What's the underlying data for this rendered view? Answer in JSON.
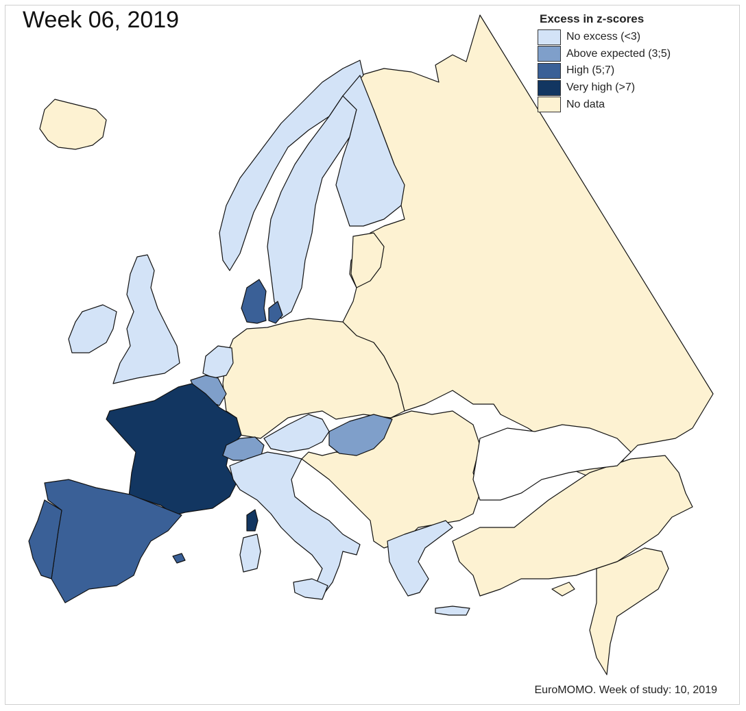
{
  "title": "Week 06, 2019",
  "footer": "EuroMOMO. Week of study: 10, 2019",
  "legend": {
    "title": "Excess in z-scores",
    "items": [
      {
        "label": "No excess (<3)",
        "color": "#d3e3f7"
      },
      {
        "label": "Above expected (3;5)",
        "color": "#7f9fca"
      },
      {
        "label": "High (5;7)",
        "color": "#3a6097"
      },
      {
        "label": "Very high (>7)",
        "color": "#123661"
      },
      {
        "label": "No data",
        "color": "#fdf2d2"
      }
    ]
  },
  "categories": {
    "no_excess": "No excess (<3)",
    "above_expected": "Above expected (3;5)",
    "high": "High (5;7)",
    "very_high": "Very high (>7)",
    "no_data": "No data"
  }
}
